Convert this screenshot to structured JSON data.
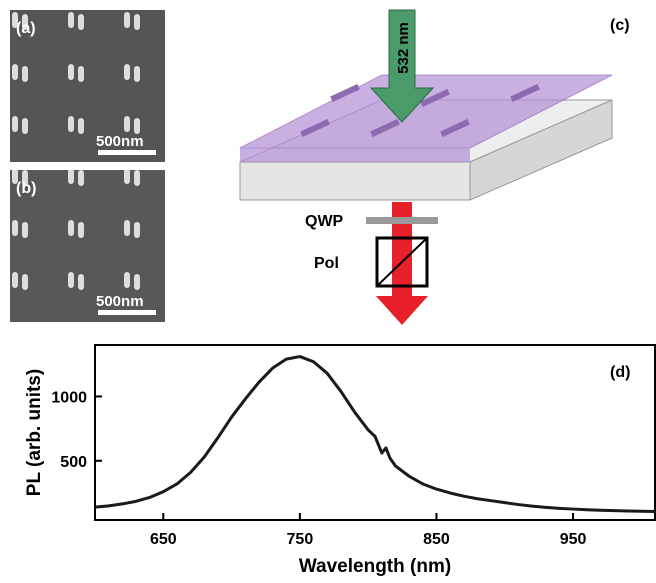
{
  "panels": {
    "a": {
      "label": "(a)",
      "scale": "500nm"
    },
    "b": {
      "label": "(b)",
      "scale": "500nm"
    },
    "c": {
      "label": "(c)",
      "laser": "532 nm",
      "qwp": "QWP",
      "pol": "Pol"
    }
  },
  "chart_data": {
    "type": "line",
    "label": "(d)",
    "xlabel": "Wavelength (nm)",
    "ylabel": "PL (arb. units)",
    "x": [
      600,
      610,
      620,
      630,
      640,
      650,
      660,
      670,
      680,
      690,
      700,
      710,
      720,
      730,
      740,
      750,
      760,
      770,
      780,
      790,
      800,
      805,
      810,
      813,
      816,
      820,
      830,
      840,
      850,
      860,
      870,
      880,
      890,
      900,
      910,
      920,
      930,
      940,
      950,
      960,
      970,
      980,
      990,
      1000,
      1010
    ],
    "series": [
      {
        "color": "#1a1a1a",
        "values": [
          140,
          150,
          165,
          185,
          215,
          260,
          320,
          410,
          530,
          680,
          840,
          980,
          1110,
          1220,
          1290,
          1310,
          1270,
          1180,
          1040,
          880,
          740,
          690,
          560,
          600,
          520,
          460,
          380,
          320,
          280,
          250,
          225,
          205,
          190,
          175,
          160,
          148,
          138,
          130,
          125,
          120,
          116,
          113,
          110,
          108,
          106
        ]
      }
    ],
    "xlim": [
      600,
      1010
    ],
    "ylim": [
      40,
      1400
    ],
    "xticks": [
      650,
      750,
      850,
      950
    ],
    "yticks": [
      500,
      1000
    ]
  }
}
